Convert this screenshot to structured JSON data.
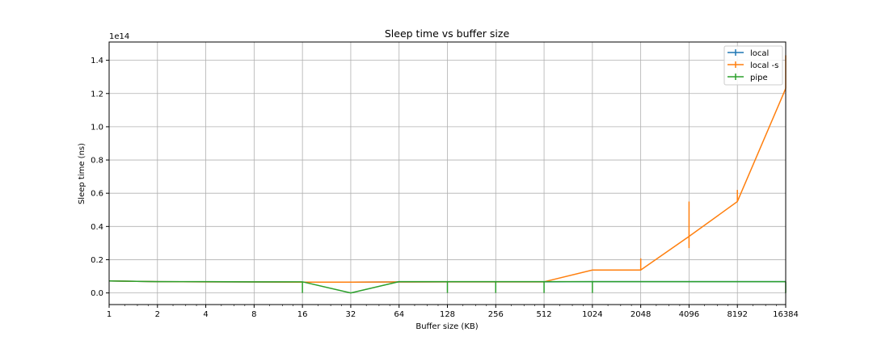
{
  "chart_data": {
    "type": "line",
    "title": "Sleep time vs buffer size",
    "xlabel": "Buffer size (KB)",
    "ylabel": "Sleep time (ns)",
    "y_offset_label": "1e14",
    "x_scale": "log2",
    "x": [
      1,
      2,
      4,
      8,
      16,
      32,
      64,
      128,
      256,
      512,
      1024,
      2048,
      4096,
      8192,
      16384
    ],
    "x_tick_labels": [
      "1",
      "2",
      "4",
      "8",
      "16",
      "32",
      "64",
      "128",
      "256",
      "512",
      "1024",
      "2048",
      "4096",
      "8192",
      "16384"
    ],
    "y_ticks": [
      0.0,
      0.2,
      0.4,
      0.6,
      0.8,
      1.0,
      1.2,
      1.4
    ],
    "y_tick_labels": [
      "0.0",
      "0.2",
      "0.4",
      "0.6",
      "0.8",
      "1.0",
      "1.2",
      "1.4"
    ],
    "y_unit_multiplier": 100000000000000.0,
    "xlim": [
      1,
      16384
    ],
    "ylim": [
      -0.07,
      1.51
    ],
    "grid": true,
    "legend_position": "top-right",
    "series": [
      {
        "name": "local",
        "color": "#1f77b4",
        "values": [
          0.072,
          0.068,
          0.067,
          0.066,
          0.065,
          0.065,
          0.066,
          0.067,
          0.067,
          0.067,
          0.068,
          0.068,
          0.068,
          0.068,
          0.068
        ],
        "err_low": [
          0,
          0,
          0,
          0,
          0,
          0,
          0,
          0,
          0,
          0,
          0,
          0,
          0,
          0,
          0
        ],
        "err_high": [
          0,
          0,
          0,
          0,
          0,
          0,
          0,
          0,
          0,
          0,
          0,
          0,
          0,
          0,
          0
        ]
      },
      {
        "name": "local -s",
        "color": "#ff7f0e",
        "values": [
          0.072,
          0.068,
          0.067,
          0.066,
          0.065,
          0.065,
          0.066,
          0.067,
          0.067,
          0.067,
          0.138,
          0.138,
          0.34,
          0.55,
          1.23
        ],
        "err_low": [
          0,
          0,
          0,
          0,
          0,
          0,
          0,
          0,
          0,
          0,
          0,
          0,
          0.07,
          0,
          0
        ],
        "err_high": [
          0,
          0,
          0,
          0,
          0,
          0,
          0,
          0.001,
          0.001,
          0.001,
          0,
          0.07,
          0.21,
          0.07,
          0.2
        ]
      },
      {
        "name": "pipe",
        "color": "#2ca02c",
        "values": [
          0.072,
          0.068,
          0.068,
          0.067,
          0.067,
          0.0,
          0.068,
          0.068,
          0.068,
          0.068,
          0.068,
          0.068,
          0.068,
          0.068,
          0.068
        ],
        "err_low": [
          0,
          0,
          0,
          0,
          0.067,
          0,
          0,
          0.068,
          0.068,
          0.068,
          0.068,
          0,
          0,
          0,
          0.068
        ],
        "err_high": [
          0,
          0,
          0,
          0,
          0,
          0,
          0,
          0,
          0,
          0,
          0,
          0,
          0,
          0,
          0
        ]
      }
    ]
  }
}
